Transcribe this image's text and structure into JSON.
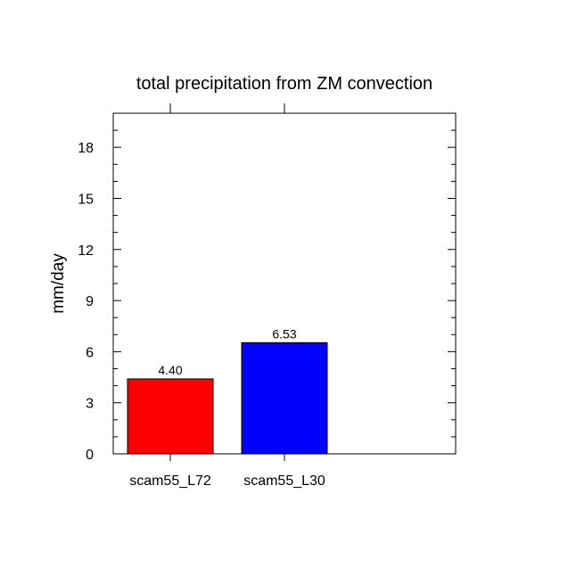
{
  "chart_data": {
    "type": "bar",
    "title": "total precipitation from ZM convection",
    "xlabel": "",
    "ylabel": "mm/day",
    "categories": [
      "scam55_L72",
      "scam55_L30"
    ],
    "values": [
      4.4,
      6.53
    ],
    "value_labels": [
      "4.40",
      "6.53"
    ],
    "colors": [
      "#ff0000",
      "#0000ff"
    ],
    "ylim": [
      0,
      20
    ],
    "yticks": [
      0,
      3,
      6,
      9,
      12,
      15,
      18
    ],
    "ytick_labels": [
      "0",
      "3",
      "6",
      "9",
      "12",
      "15",
      "18"
    ],
    "y_minor_step": 1,
    "x_slots": 3,
    "grid": false,
    "legend": "none"
  }
}
